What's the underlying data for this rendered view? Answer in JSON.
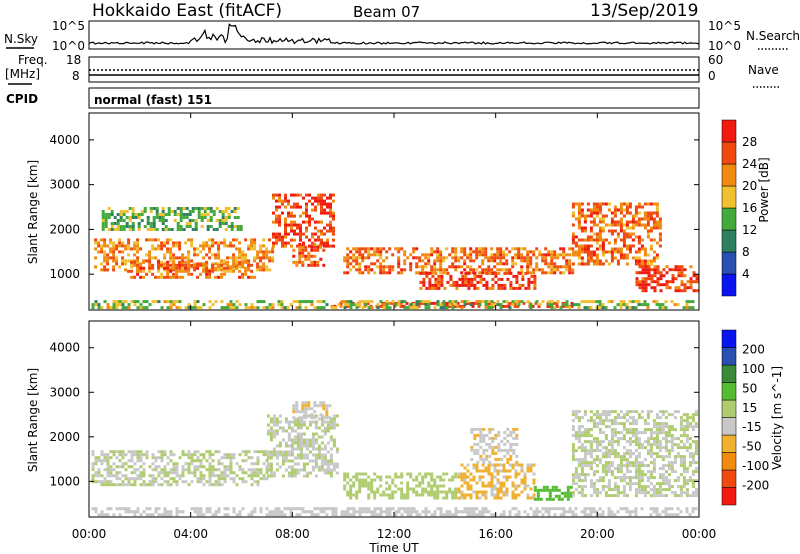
{
  "header": {
    "title": "Hokkaido East (fitACF)",
    "beam": "Beam 07",
    "date": "13/Sep/2019"
  },
  "sky_panel": {
    "left_label": "N.Sky",
    "right_label": "N.Search",
    "left_ticks": [
      "10^5",
      "10^0"
    ],
    "right_ticks": [
      "10^5",
      "10^0"
    ]
  },
  "freq_panel": {
    "left_label_1": "Freq.",
    "left_label_2": "[MHz]",
    "left_ticks": [
      "18",
      "8"
    ],
    "right_label": "Nave",
    "right_ticks": [
      "60",
      "0"
    ]
  },
  "cpid_panel": {
    "label": "CPID",
    "value": "normal (fast) 151"
  },
  "colors": {
    "power_scale": [
      "#0a14f0",
      "#2a4fb0",
      "#2e8060",
      "#44aa3c",
      "#f0c030",
      "#f08a10",
      "#f04a10",
      "#f01a10"
    ],
    "velocity_scale": [
      "#f01a10",
      "#f04a10",
      "#f08a10",
      "#f0b030",
      "#c8c8c8",
      "#b0cc70",
      "#55bb33",
      "#3a8a3a",
      "#2a4fb0",
      "#0a14f0"
    ]
  },
  "chart_data": [
    {
      "type": "heatmap",
      "name": "power",
      "ylabel": "Slant Range [km]",
      "yticks": [
        "1000",
        "2000",
        "3000",
        "4000"
      ],
      "ylim": [
        200,
        4600
      ],
      "xlim": [
        0,
        24
      ],
      "colorbar_label": "Power [dB]",
      "colorbar_ticks": [
        "28",
        "24",
        "20",
        "16",
        "12",
        "8",
        "4"
      ],
      "colorbar_range": [
        0,
        32
      ],
      "regions": [
        {
          "t0": 0.2,
          "t1": 7.2,
          "r0": 1100,
          "r1": 1800,
          "level": 22
        },
        {
          "t0": 1.5,
          "t1": 6.5,
          "r0": 900,
          "r1": 1300,
          "level": 24
        },
        {
          "t0": 7.2,
          "t1": 9.6,
          "r0": 1600,
          "r1": 2800,
          "level": 27
        },
        {
          "t0": 8.0,
          "t1": 9.2,
          "r0": 1200,
          "r1": 1700,
          "level": 26
        },
        {
          "t0": 10.0,
          "t1": 19.0,
          "r0": 1000,
          "r1": 1600,
          "level": 24
        },
        {
          "t0": 13.0,
          "t1": 17.5,
          "r0": 650,
          "r1": 1050,
          "level": 28
        },
        {
          "t0": 9.5,
          "t1": 19.0,
          "r0": 280,
          "r1": 380,
          "level": 27
        },
        {
          "t0": 19.0,
          "t1": 22.5,
          "r0": 1200,
          "r1": 2600,
          "level": 24
        },
        {
          "t0": 21.5,
          "t1": 23.9,
          "r0": 600,
          "r1": 1200,
          "level": 28
        },
        {
          "t0": 0.1,
          "t1": 23.9,
          "r0": 220,
          "r1": 420,
          "level": 16
        },
        {
          "t0": 0.5,
          "t1": 6.0,
          "r0": 2000,
          "r1": 2500,
          "level": 14
        }
      ]
    },
    {
      "type": "heatmap",
      "name": "velocity",
      "ylabel": "Slant Range [km]",
      "yticks": [
        "1000",
        "2000",
        "3000",
        "4000"
      ],
      "ylim": [
        200,
        4600
      ],
      "xlim": [
        0,
        24
      ],
      "xlabel": "Time UT",
      "xticks": [
        "00:00",
        "04:00",
        "08:00",
        "12:00",
        "16:00",
        "20:00",
        "00:00"
      ],
      "colorbar_label": "Velocity [m s^-1]",
      "colorbar_ticks": [
        "200",
        "100",
        "50",
        "15",
        "-15",
        "-50",
        "-100",
        "-200"
      ],
      "colorbar_range": [
        -250,
        250
      ],
      "regions": [
        {
          "t0": 0.1,
          "t1": 7.0,
          "r0": 900,
          "r1": 1700,
          "level": 0
        },
        {
          "t0": 7.0,
          "t1": 9.8,
          "r0": 1100,
          "r1": 2500,
          "level": 0
        },
        {
          "t0": 8.0,
          "t1": 9.5,
          "r0": 2400,
          "r1": 2800,
          "level": -40
        },
        {
          "t0": 10.0,
          "t1": 14.5,
          "r0": 600,
          "r1": 1200,
          "level": 30
        },
        {
          "t0": 14.5,
          "t1": 17.5,
          "r0": 600,
          "r1": 1400,
          "level": -60
        },
        {
          "t0": 15.0,
          "t1": 16.8,
          "r0": 1400,
          "r1": 2200,
          "level": -40
        },
        {
          "t0": 17.5,
          "t1": 19.0,
          "r0": 600,
          "r1": 900,
          "level": 70
        },
        {
          "t0": 19.0,
          "t1": 23.9,
          "r0": 700,
          "r1": 2600,
          "level": 0
        },
        {
          "t0": 0.1,
          "t1": 23.9,
          "r0": 220,
          "r1": 420,
          "level": -30
        }
      ]
    }
  ]
}
